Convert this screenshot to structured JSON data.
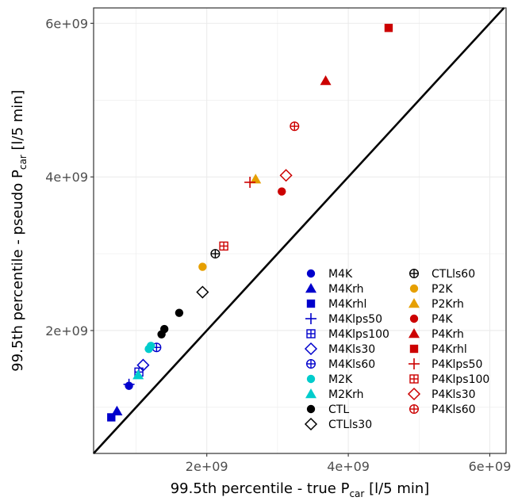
{
  "chart_data": {
    "type": "scatter",
    "xlabel": {
      "main": "99.5th percentile - true P",
      "sub": "car",
      "unit": " [l/5 min]"
    },
    "ylabel": {
      "main": "99.5th percentile - pseudo P",
      "sub": "car",
      "unit": " [l/5 min]"
    },
    "xlim": [
      400000000,
      6230000000
    ],
    "ylim": [
      400000000,
      6200000000
    ],
    "x_ticks": [
      {
        "value": 2000000000,
        "label": "2e+09"
      },
      {
        "value": 4000000000,
        "label": "4e+09"
      },
      {
        "value": 6000000000,
        "label": "6e+09"
      }
    ],
    "y_ticks": [
      {
        "value": 2000000000,
        "label": "2e+09"
      },
      {
        "value": 4000000000,
        "label": "4e+09"
      },
      {
        "value": 6000000000,
        "label": "6e+09"
      }
    ],
    "grid": true,
    "reference_line": "y = x",
    "legend_position": "bottom-right",
    "series": [
      {
        "name": "M4K",
        "color": "#0000CC",
        "marker": "circle-filled",
        "points": [
          [
            900000000,
            1280000000
          ]
        ]
      },
      {
        "name": "M4Krh",
        "color": "#0000CC",
        "marker": "triangle-filled",
        "points": [
          [
            730000000,
            950000000
          ]
        ]
      },
      {
        "name": "M4Krhl",
        "color": "#0000CC",
        "marker": "square-filled",
        "points": [
          [
            650000000,
            870000000
          ]
        ]
      },
      {
        "name": "M4Klps50",
        "color": "#0000CC",
        "marker": "plus",
        "points": [
          [
            900000000,
            1300000000
          ]
        ]
      },
      {
        "name": "M4Klps100",
        "color": "#0000CC",
        "marker": "square-plus",
        "points": [
          [
            1040000000,
            1460000000
          ]
        ]
      },
      {
        "name": "M4Kls30",
        "color": "#0000CC",
        "marker": "diamond-open",
        "points": [
          [
            1100000000,
            1550000000
          ]
        ]
      },
      {
        "name": "M4Kls60",
        "color": "#0000CC",
        "marker": "circle-plus",
        "points": [
          [
            1290000000,
            1780000000
          ]
        ]
      },
      {
        "name": "M2K",
        "color": "#00CCCC",
        "marker": "circle-filled",
        "points": [
          [
            1180000000,
            1760000000
          ],
          [
            1210000000,
            1800000000
          ]
        ]
      },
      {
        "name": "M2Krh",
        "color": "#00CCCC",
        "marker": "triangle-filled",
        "points": [
          [
            1030000000,
            1420000000
          ]
        ]
      },
      {
        "name": "CTL",
        "color": "#000000",
        "marker": "circle-filled",
        "points": [
          [
            1360000000,
            1950000000
          ],
          [
            1400000000,
            2020000000
          ],
          [
            1610000000,
            2230000000
          ]
        ]
      },
      {
        "name": "CTLls30",
        "color": "#000000",
        "marker": "diamond-open",
        "points": [
          [
            1940000000,
            2500000000
          ]
        ]
      },
      {
        "name": "CTLls60",
        "color": "#000000",
        "marker": "circle-plus",
        "points": [
          [
            2120000000,
            3000000000
          ]
        ]
      },
      {
        "name": "P2K",
        "color": "#E69F00",
        "marker": "circle-filled",
        "points": [
          [
            1940000000,
            2830000000
          ]
        ]
      },
      {
        "name": "P2Krh",
        "color": "#E69F00",
        "marker": "triangle-filled",
        "points": [
          [
            2690000000,
            3970000000
          ]
        ]
      },
      {
        "name": "P4K",
        "color": "#CC0000",
        "marker": "circle-filled",
        "points": [
          [
            3060000000,
            3810000000
          ]
        ]
      },
      {
        "name": "P4Krh",
        "color": "#CC0000",
        "marker": "triangle-filled",
        "points": [
          [
            3680000000,
            5250000000
          ]
        ]
      },
      {
        "name": "P4Krhl",
        "color": "#CC0000",
        "marker": "square-filled",
        "points": [
          [
            4570000000,
            5940000000
          ]
        ]
      },
      {
        "name": "P4Klps50",
        "color": "#CC0000",
        "marker": "plus",
        "points": [
          [
            2610000000,
            3930000000
          ]
        ]
      },
      {
        "name": "P4Klps100",
        "color": "#CC0000",
        "marker": "square-plus",
        "points": [
          [
            2240000000,
            3100000000
          ]
        ]
      },
      {
        "name": "P4Kls30",
        "color": "#CC0000",
        "marker": "diamond-open",
        "points": [
          [
            3120000000,
            4020000000
          ]
        ]
      },
      {
        "name": "P4Kls60",
        "color": "#CC0000",
        "marker": "circle-plus",
        "points": [
          [
            3240000000,
            4660000000
          ]
        ]
      }
    ]
  }
}
